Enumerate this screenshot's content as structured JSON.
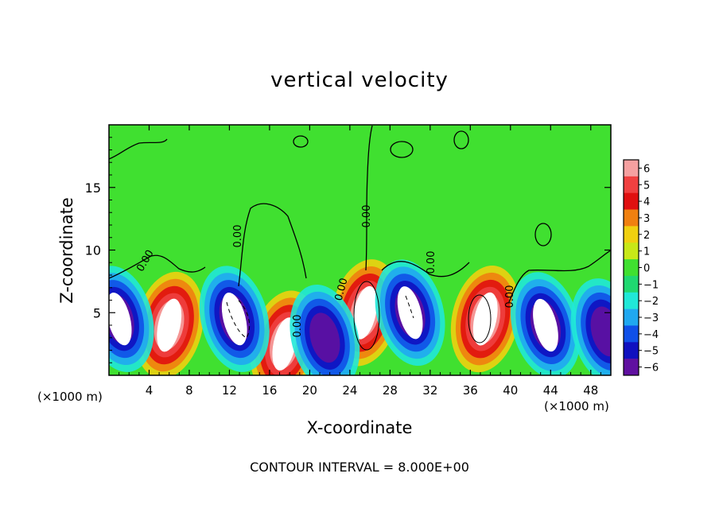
{
  "title": "vertical velocity",
  "footer": "CONTOUR INTERVAL = 8.000E+00",
  "chart_data": {
    "type": "heatmap",
    "title": "vertical velocity",
    "xlabel": "X-coordinate",
    "ylabel": "Z-coordinate",
    "x_unit": "(×1000 m)",
    "xlim": [
      0,
      50
    ],
    "ylim": [
      0,
      20
    ],
    "x_ticks": [
      4,
      8,
      12,
      16,
      20,
      24,
      28,
      32,
      36,
      40,
      44,
      48
    ],
    "y_ticks": [
      5,
      10,
      15
    ],
    "colorbar": {
      "ticks": [
        6,
        5,
        4,
        3,
        2,
        1,
        0,
        -1,
        -2,
        -3,
        -4,
        -5,
        -6
      ],
      "tick_labels": [
        "6",
        "5",
        "4",
        "3",
        "2",
        "1",
        "0",
        "−1",
        "−2",
        "−3",
        "−4",
        "−5",
        "−6"
      ],
      "colors": [
        "#f5a0a0",
        "#f04040",
        "#e01010",
        "#f08010",
        "#f0d010",
        "#c8e818",
        "#40e030",
        "#20d870",
        "#20e8d8",
        "#20a8f0",
        "#1050e8",
        "#1010c0",
        "#6010a0"
      ]
    },
    "contour_labels": [
      "0.00",
      "0.00",
      "0.00",
      "0.00",
      "0.00",
      "0.00",
      "0.00"
    ],
    "features": [
      {
        "kind": "updraft",
        "x": 6,
        "z": 4.0,
        "peak": 8
      },
      {
        "kind": "updraft",
        "x": 17.5,
        "z": 2.5,
        "peak": 7
      },
      {
        "kind": "updraft",
        "x": 25.5,
        "z": 5.0,
        "peak": 9
      },
      {
        "kind": "updraft",
        "x": 37.5,
        "z": 4.5,
        "peak": 8
      },
      {
        "kind": "downdraft",
        "x": 1,
        "z": 4.5,
        "peak": -7
      },
      {
        "kind": "downdraft",
        "x": 12.5,
        "z": 4.5,
        "peak": -8
      },
      {
        "kind": "downdraft",
        "x": 21.5,
        "z": 3.0,
        "peak": -6
      },
      {
        "kind": "downdraft",
        "x": 30,
        "z": 5.0,
        "peak": -7
      },
      {
        "kind": "downdraft",
        "x": 43.5,
        "z": 4.0,
        "peak": -8
      },
      {
        "kind": "downdraft",
        "x": 49.5,
        "z": 3.5,
        "peak": -6
      }
    ],
    "grid": false,
    "legend": "colorbar-right"
  }
}
